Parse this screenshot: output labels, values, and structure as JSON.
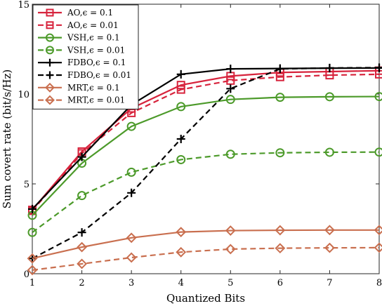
{
  "chart_data": {
    "type": "line",
    "xlabel": "Quantized Bits",
    "ylabel": "Sum covert rate (bit/s/Hz)",
    "x": [
      1,
      2,
      3,
      4,
      5,
      6,
      7,
      8
    ],
    "x_ticks": [
      "1",
      "2",
      "3",
      "4",
      "5",
      "6",
      "7",
      "8"
    ],
    "xlim": [
      1,
      8
    ],
    "ylim": [
      0,
      15
    ],
    "y_ticks": [
      "0",
      "5",
      "10",
      "15"
    ],
    "grid": false,
    "legend_position": "top-left",
    "series": [
      {
        "name": "AO,ϵ = 0.1",
        "color": "#d7233c",
        "line": "solid",
        "marker": "square",
        "values": [
          3.55,
          6.8,
          9.2,
          10.5,
          11.0,
          11.2,
          11.25,
          11.3
        ]
      },
      {
        "name": "AO,ϵ = 0.01",
        "color": "#d7233c",
        "line": "dashed",
        "marker": "square",
        "values": [
          3.5,
          6.7,
          8.95,
          10.25,
          10.75,
          10.95,
          11.05,
          11.1
        ]
      },
      {
        "name": "VSH,ϵ = 0.1",
        "color": "#4c9a2a",
        "line": "solid",
        "marker": "circle",
        "values": [
          3.25,
          6.15,
          8.2,
          9.3,
          9.7,
          9.82,
          9.85,
          9.86
        ]
      },
      {
        "name": "VSH,ϵ = 0.01",
        "color": "#4c9a2a",
        "line": "dashed",
        "marker": "circle",
        "values": [
          2.3,
          4.35,
          5.65,
          6.35,
          6.65,
          6.73,
          6.76,
          6.77
        ]
      },
      {
        "name": "FDBO,ϵ = 0.1",
        "color": "#000000",
        "line": "solid",
        "marker": "plus",
        "values": [
          3.6,
          6.5,
          9.4,
          11.1,
          11.4,
          11.42,
          11.44,
          11.45
        ]
      },
      {
        "name": "FDBO,ϵ = 0.01",
        "color": "#000000",
        "line": "dashed",
        "marker": "plus",
        "values": [
          0.85,
          2.3,
          4.5,
          7.5,
          10.3,
          11.4,
          11.45,
          11.47
        ]
      },
      {
        "name": "MRT,ϵ = 0.1",
        "color": "#c96f4f",
        "line": "solid",
        "marker": "diamond",
        "values": [
          0.85,
          1.48,
          2.0,
          2.32,
          2.4,
          2.42,
          2.43,
          2.43
        ]
      },
      {
        "name": "MRT,ϵ = 0.01",
        "color": "#c96f4f",
        "line": "dashed",
        "marker": "diamond",
        "values": [
          0.2,
          0.55,
          0.9,
          1.2,
          1.37,
          1.42,
          1.44,
          1.45
        ]
      }
    ]
  }
}
